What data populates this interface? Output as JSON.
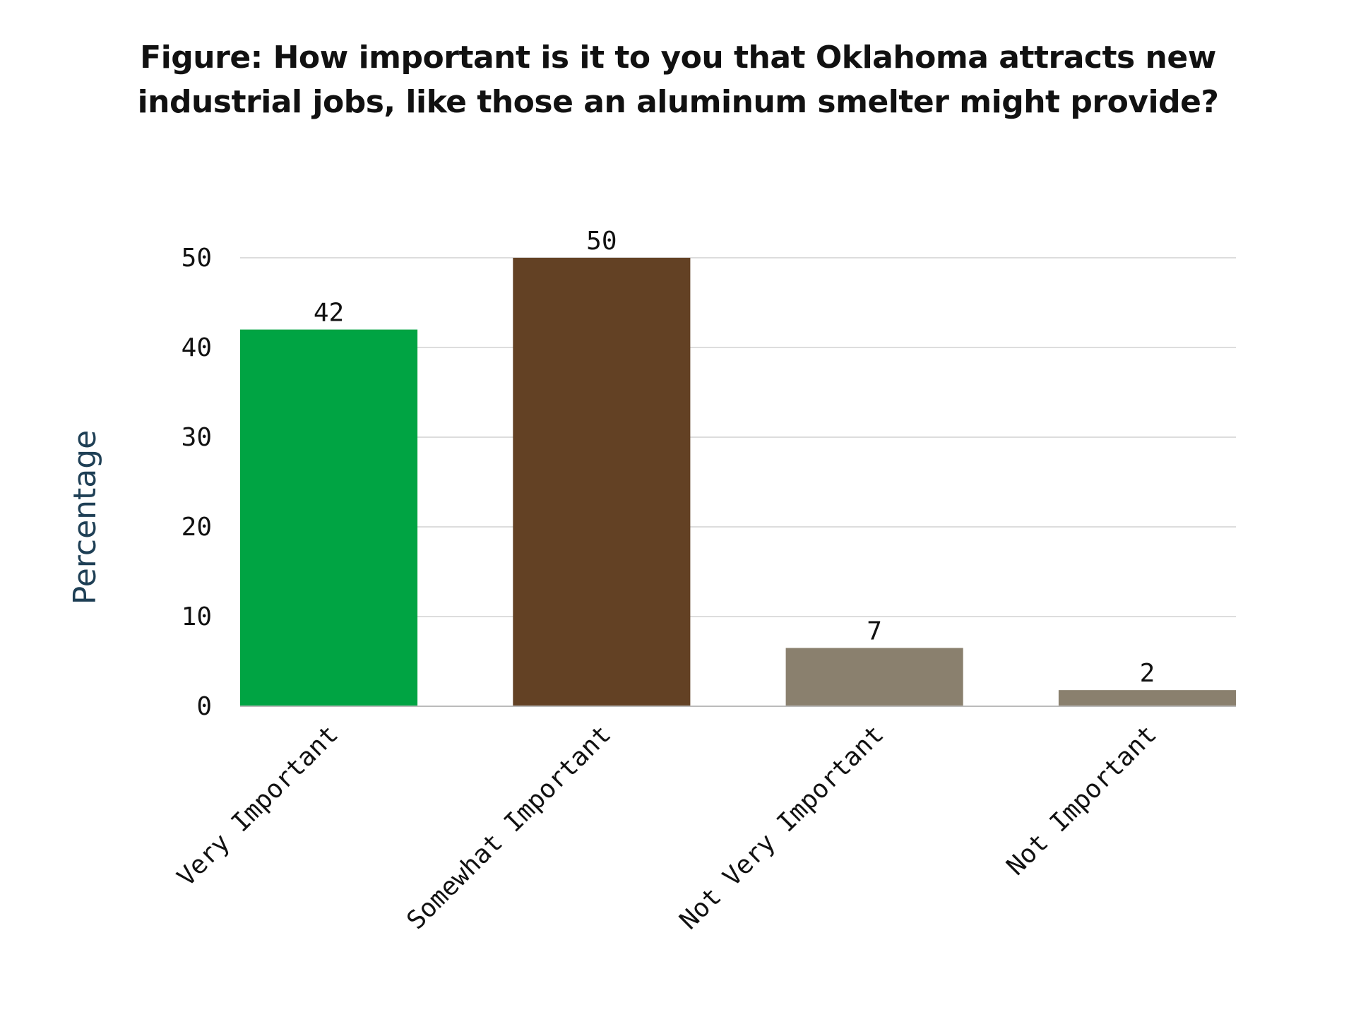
{
  "title_lines": [
    "Figure: How important is it to you that Oklahoma attracts new",
    "industrial jobs, like those an aluminum smelter might provide?"
  ],
  "chart_data": {
    "type": "bar",
    "title": "Figure: How important is it to you that Oklahoma attracts new industrial jobs, like those an aluminum smelter might provide?",
    "categories": [
      "Very Important",
      "Somewhat Important",
      "Not Very Important",
      "Not Important"
    ],
    "values": [
      42,
      50,
      6.5,
      1.8
    ],
    "data_labels": [
      "42",
      "50",
      "7",
      "2"
    ],
    "colors": [
      "#00a443",
      "#634124",
      "#8a806e",
      "#8a806e"
    ],
    "xlabel": "",
    "ylabel": "Percentage",
    "ylim": [
      0,
      50
    ],
    "yticks": [
      0,
      10,
      20,
      30,
      40,
      50
    ],
    "grid": true,
    "grid_color": "#dddddd",
    "axis_color": "#bbbbbb"
  }
}
